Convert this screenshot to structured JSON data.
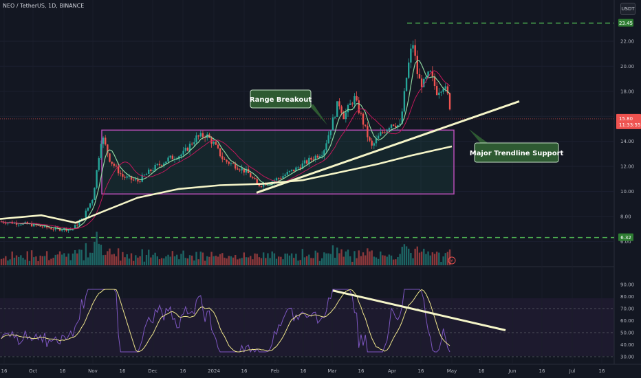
{
  "header": {
    "symbol_line": "NEO / TetherUS, 1D, BINANCE",
    "currency_badge": "USDT"
  },
  "colors": {
    "background": "#131722",
    "up": "#26a69a",
    "down": "#ef5350",
    "ma_fast": "#8fd6a0",
    "ma_mid": "#c2185b",
    "ma_slow": "#f5f5c8",
    "range_border": "#b84fb8",
    "level_line": "#4caf50",
    "annotation_bg": "#2e5a32",
    "rsi_line": "#7e57c2",
    "rsi_ma": "#f0e68c",
    "trendline": "#f5f5c8"
  },
  "chart_data": [
    {
      "type": "candlestick",
      "title": "NEO / TetherUS, 1D, BINANCE",
      "ylim": [
        6.0,
        24.0
      ],
      "y_ticks": [
        6.0,
        8.0,
        10.0,
        12.0,
        14.0,
        16.0,
        18.0,
        20.0,
        22.0
      ],
      "x_tick_labels": [
        "16",
        "Oct",
        "16",
        "Nov",
        "16",
        "Dec",
        "16",
        "2024",
        "16",
        "Feb",
        "16",
        "Mar",
        "16",
        "Apr",
        "16",
        "May",
        "16",
        "Jun",
        "16",
        "Jul",
        "16"
      ],
      "price_labels": {
        "top_level": "23.45",
        "current_price": "15.80",
        "countdown": "11:33:55",
        "bottom_level": "6.32"
      },
      "levels": [
        23.45,
        6.32
      ],
      "range_box": {
        "low": 9.8,
        "high": 14.9
      },
      "annotations": [
        "Range Breakout",
        "Major Trendline Support"
      ],
      "volume_indicator": "⚡"
    },
    {
      "type": "line",
      "title": "",
      "ylim": [
        30.0,
        90.0
      ],
      "y_ticks": [
        30.0,
        40.0,
        50.0,
        60.0,
        70.0,
        80.0,
        90.0
      ],
      "bands": [
        70,
        50,
        30
      ]
    }
  ]
}
